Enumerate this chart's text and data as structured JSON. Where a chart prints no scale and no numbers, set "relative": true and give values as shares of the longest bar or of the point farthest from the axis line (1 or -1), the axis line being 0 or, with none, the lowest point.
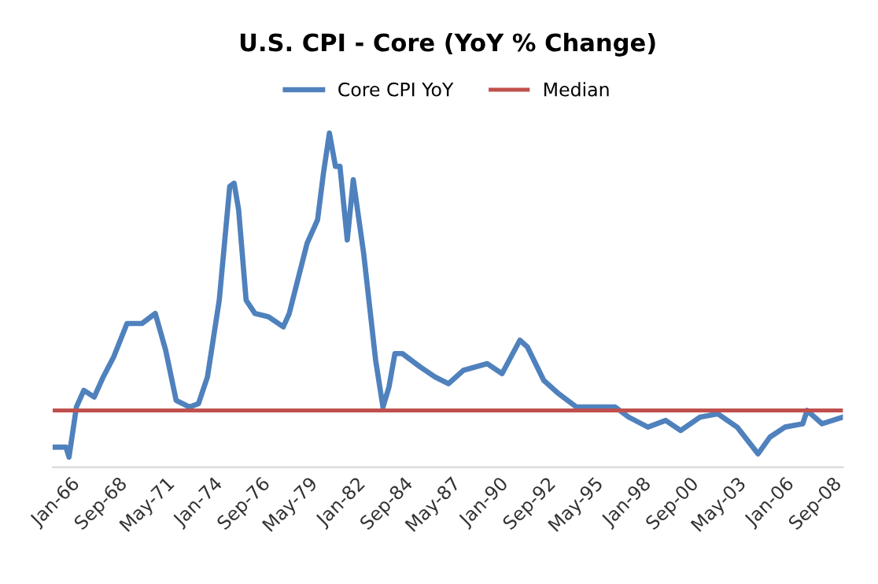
{
  "chart_data": {
    "type": "line",
    "title": "U.S. CPI - Core (YoY % Change)",
    "relative": true,
    "legend": "top",
    "grid": false,
    "marker": "none",
    "line_style": "solid",
    "xlim": [
      "1965-01",
      "2009-04"
    ],
    "xticks": [
      {
        "value": "1966-01",
        "label": "Jan-66"
      },
      {
        "value": "1968-09",
        "label": "Sep-68"
      },
      {
        "value": "1971-05",
        "label": "May-71"
      },
      {
        "value": "1974-01",
        "label": "Jan-74"
      },
      {
        "value": "1976-09",
        "label": "Sep-76"
      },
      {
        "value": "1979-05",
        "label": "May-79"
      },
      {
        "value": "1982-01",
        "label": "Jan-82"
      },
      {
        "value": "1984-09",
        "label": "Sep-84"
      },
      {
        "value": "1987-05",
        "label": "May-87"
      },
      {
        "value": "1990-01",
        "label": "Jan-90"
      },
      {
        "value": "1992-09",
        "label": "Sep-92"
      },
      {
        "value": "1995-05",
        "label": "May-95"
      },
      {
        "value": "1998-01",
        "label": "Jan-98"
      },
      {
        "value": "2000-09",
        "label": "Sep-00"
      },
      {
        "value": "2003-05",
        "label": "May-03"
      },
      {
        "value": "2006-01",
        "label": "Jan-06"
      },
      {
        "value": "2008-09",
        "label": "Sep-08"
      }
    ],
    "ref_lines": [
      {
        "axis": "y",
        "value": 0.17,
        "label": "Median",
        "color": "#c0504d",
        "line_style": "solid"
      }
    ],
    "series": [
      {
        "name": "Core CPI YoY",
        "color": "#4f81bd",
        "x": [
          "1965-01",
          "1965-10",
          "1965-12",
          "1966-05",
          "1966-10",
          "1967-05",
          "1967-11",
          "1968-06",
          "1969-03",
          "1970-01",
          "1970-10",
          "1971-05",
          "1971-12",
          "1972-09",
          "1973-03",
          "1973-09",
          "1974-05",
          "1974-12",
          "1975-03",
          "1975-06",
          "1975-11",
          "1976-05",
          "1977-02",
          "1977-12",
          "1978-04",
          "1979-04",
          "1979-11",
          "1980-03",
          "1980-07",
          "1980-11",
          "1981-02",
          "1981-07",
          "1981-11",
          "1982-06",
          "1983-02",
          "1983-07",
          "1983-11",
          "1984-03",
          "1984-08",
          "1985-08",
          "1986-06",
          "1987-03",
          "1988-01",
          "1989-05",
          "1990-03",
          "1991-03",
          "1991-08",
          "1992-07",
          "1993-05",
          "1994-05",
          "1995-05",
          "1996-07",
          "1997-04",
          "1998-05",
          "1999-05",
          "2000-03",
          "2001-04",
          "2002-04",
          "2003-05",
          "2004-07",
          "2005-03",
          "2006-01",
          "2007-01",
          "2007-04",
          "2008-02",
          "2009-04"
        ],
        "values": [
          0.06,
          0.06,
          0.03,
          0.18,
          0.23,
          0.21,
          0.27,
          0.33,
          0.43,
          0.43,
          0.46,
          0.35,
          0.2,
          0.18,
          0.19,
          0.27,
          0.5,
          0.84,
          0.85,
          0.77,
          0.5,
          0.46,
          0.45,
          0.42,
          0.46,
          0.67,
          0.74,
          0.88,
          1,
          0.9,
          0.9,
          0.68,
          0.86,
          0.64,
          0.32,
          0.18,
          0.24,
          0.34,
          0.34,
          0.3,
          0.27,
          0.25,
          0.29,
          0.31,
          0.28,
          0.38,
          0.36,
          0.26,
          0.22,
          0.18,
          0.18,
          0.18,
          0.15,
          0.12,
          0.14,
          0.11,
          0.15,
          0.16,
          0.12,
          0.04,
          0.09,
          0.12,
          0.13,
          0.17,
          0.13,
          0.15
        ]
      }
    ]
  }
}
